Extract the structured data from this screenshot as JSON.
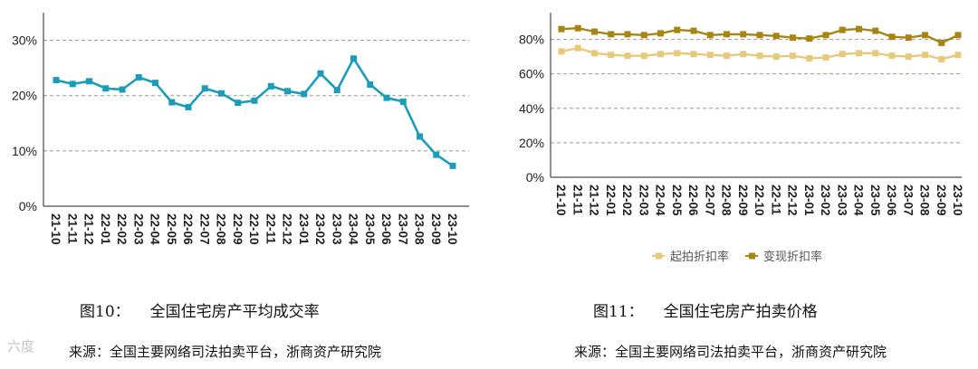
{
  "figures": [
    {
      "caption_number": "图10：",
      "caption_title": "全国住宅房产平均成交率",
      "source": "来源：全国主要网络司法拍卖平台，浙商资产研究院"
    },
    {
      "caption_number": "图11：",
      "caption_title": "全国住宅房产拍卖价格",
      "source": "来源：全国主要网络司法拍卖平台，浙商资产研究院"
    }
  ],
  "watermark": "六度",
  "colors": {
    "line_teal": "#1a9dbb",
    "start_discount": "#e8c97a",
    "realized_discount": "#a88512"
  },
  "chart_data": [
    {
      "type": "line",
      "title": "",
      "categories": [
        "21-10",
        "21-11",
        "21-12",
        "22-01",
        "22-02",
        "22-03",
        "22-04",
        "22-05",
        "22-06",
        "22-07",
        "22-08",
        "22-09",
        "22-10",
        "22-11",
        "22-12",
        "23-01",
        "23-02",
        "23-03",
        "23-04",
        "23-05",
        "23-06",
        "23-07",
        "23-08",
        "23-09",
        "23-10"
      ],
      "series": [
        {
          "values": [
            22.8,
            22.1,
            22.6,
            21.3,
            21.1,
            23.3,
            22.3,
            18.8,
            17.9,
            21.3,
            20.4,
            18.7,
            19.1,
            21.7,
            20.8,
            20.3,
            24.0,
            21.0,
            26.7,
            22.0,
            19.6,
            18.9,
            12.6,
            9.3,
            7.3
          ]
        }
      ],
      "ylim": [
        0,
        35
      ],
      "yticks": [
        "0%",
        "10%",
        "20%",
        "30%"
      ],
      "ytick_values": [
        0,
        10,
        20,
        30
      ],
      "grid": true,
      "legend": "none"
    },
    {
      "type": "line",
      "title": "",
      "categories": [
        "21-10",
        "21-11",
        "21-12",
        "22-01",
        "22-02",
        "22-03",
        "22-04",
        "22-05",
        "22-06",
        "22-07",
        "22-08",
        "22-09",
        "22-10",
        "22-11",
        "22-12",
        "23-01",
        "23-02",
        "23-03",
        "23-04",
        "23-05",
        "23-06",
        "23-07",
        "23-08",
        "23-09",
        "23-10"
      ],
      "series": [
        {
          "name": "起拍折扣率",
          "values": [
            73,
            75,
            72,
            71,
            70.5,
            70.5,
            71.5,
            72,
            71.5,
            71,
            70.5,
            71.5,
            70.5,
            70,
            70.5,
            69,
            69.5,
            71.5,
            72,
            72,
            70.5,
            70,
            71,
            68.5,
            71
          ]
        },
        {
          "name": "变现折扣率",
          "values": [
            86,
            86.5,
            84.5,
            83,
            83,
            82.5,
            83.5,
            85.5,
            85,
            82.5,
            83,
            83,
            82.5,
            82,
            81,
            80.5,
            82.5,
            85.5,
            86,
            85,
            81.5,
            81,
            82.5,
            78,
            82.5
          ]
        }
      ],
      "ylim": [
        0,
        95
      ],
      "yticks": [
        "0%",
        "20%",
        "40%",
        "60%",
        "80%"
      ],
      "ytick_values": [
        0,
        20,
        40,
        60,
        80
      ],
      "grid": true,
      "legend": "bottom"
    }
  ]
}
